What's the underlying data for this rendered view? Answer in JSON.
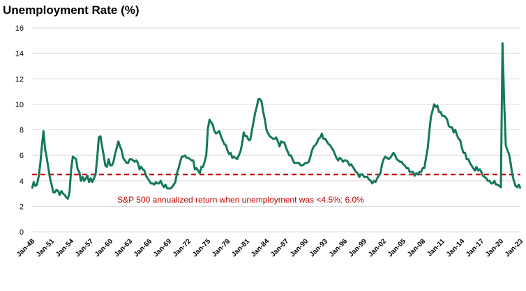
{
  "chart_data": {
    "type": "line",
    "title": "Unemployment Rate (%)",
    "annotation": "S&P 500 annualized return when unemployment was <4.5%: 6.0%",
    "reference_line": {
      "value": 4.5,
      "color": "#c00000"
    },
    "color": "#14785a",
    "grid": true,
    "ylim": [
      0,
      16
    ],
    "yticks": [
      0,
      2,
      4,
      6,
      8,
      10,
      12,
      14,
      16
    ],
    "categories": [
      "Jan-48",
      null,
      null,
      null,
      null,
      null,
      null,
      null,
      null,
      null,
      null,
      null,
      "Jan-51",
      null,
      null,
      null,
      null,
      null,
      null,
      null,
      null,
      null,
      null,
      null,
      "Jan-54",
      null,
      null,
      null,
      null,
      null,
      null,
      null,
      null,
      null,
      null,
      null,
      "Jan-57",
      null,
      null,
      null,
      null,
      null,
      null,
      null,
      null,
      null,
      null,
      null,
      "Jan-60",
      null,
      null,
      null,
      null,
      null,
      null,
      null,
      null,
      null,
      null,
      null,
      "Jan-63",
      null,
      null,
      null,
      null,
      null,
      null,
      null,
      null,
      null,
      null,
      null,
      "Jan-66",
      null,
      null,
      null,
      null,
      null,
      null,
      null,
      null,
      null,
      null,
      null,
      "Jan-69",
      null,
      null,
      null,
      null,
      null,
      null,
      null,
      null,
      null,
      null,
      null,
      "Jan-72",
      null,
      null,
      null,
      null,
      null,
      null,
      null,
      null,
      null,
      null,
      null,
      "Jan-75",
      null,
      null,
      null,
      null,
      null,
      null,
      null,
      null,
      null,
      null,
      null,
      "Jan-78",
      null,
      null,
      null,
      null,
      null,
      null,
      null,
      null,
      null,
      null,
      null,
      "Jan-81",
      null,
      null,
      null,
      null,
      null,
      null,
      null,
      null,
      null,
      null,
      null,
      "Jan-84",
      null,
      null,
      null,
      null,
      null,
      null,
      null,
      null,
      null,
      null,
      null,
      "Jan-87",
      null,
      null,
      null,
      null,
      null,
      null,
      null,
      null,
      null,
      null,
      null,
      "Jan-90",
      null,
      null,
      null,
      null,
      null,
      null,
      null,
      null,
      null,
      null,
      null,
      "Jan-93",
      null,
      null,
      null,
      null,
      null,
      null,
      null,
      null,
      null,
      null,
      null,
      "Jan-96",
      null,
      null,
      null,
      null,
      null,
      null,
      null,
      null,
      null,
      null,
      null,
      "Jan-99",
      null,
      null,
      null,
      null,
      null,
      null,
      null,
      null,
      null,
      null,
      null,
      "Jan-02",
      null,
      null,
      null,
      null,
      null,
      null,
      null,
      null,
      null,
      null,
      null,
      "Jan-05",
      null,
      null,
      null,
      null,
      null,
      null,
      null,
      null,
      null,
      null,
      null,
      "Jan-08",
      null,
      null,
      null,
      null,
      null,
      null,
      null,
      null,
      null,
      null,
      null,
      "Jan-11",
      null,
      null,
      null,
      null,
      null,
      null,
      null,
      null,
      null,
      null,
      null,
      "Jan-14",
      null,
      null,
      null,
      null,
      null,
      null,
      null,
      null,
      null,
      null,
      null,
      "Jan-17",
      null,
      null,
      null,
      null,
      null,
      null,
      null,
      null,
      null,
      null,
      null,
      "Jan-20",
      null,
      null,
      null,
      null,
      null,
      null,
      null,
      null,
      null,
      null,
      null,
      "Jan-23"
    ],
    "values": [
      3.4,
      3.9,
      3.6,
      3.7,
      4.3,
      5.3,
      6.7,
      7.9,
      6.5,
      5.8,
      5.0,
      4.2,
      3.7,
      3.1,
      3.1,
      3.3,
      3.2,
      2.9,
      3.2,
      3.0,
      2.9,
      2.7,
      2.6,
      3.1,
      4.9,
      5.9,
      5.8,
      5.7,
      4.9,
      4.7,
      4.0,
      4.3,
      4.0,
      4.2,
      4.4,
      3.9,
      4.2,
      3.9,
      4.2,
      4.5,
      5.8,
      7.4,
      7.5,
      6.7,
      6.0,
      5.2,
      5.1,
      5.7,
      5.2,
      5.2,
      5.5,
      6.1,
      6.6,
      7.1,
      6.7,
      6.4,
      5.8,
      5.6,
      5.4,
      5.4,
      5.7,
      5.7,
      5.6,
      5.5,
      5.6,
      5.4,
      4.9,
      5.1,
      4.9,
      4.8,
      4.4,
      4.2,
      4.0,
      3.8,
      3.8,
      3.7,
      3.9,
      3.8,
      3.8,
      4.0,
      3.7,
      3.5,
      3.7,
      3.4,
      3.4,
      3.4,
      3.5,
      3.7,
      3.9,
      4.6,
      5.0,
      5.5,
      5.9,
      5.9,
      6.0,
      5.8,
      5.8,
      5.7,
      5.6,
      5.6,
      4.9,
      5.0,
      4.8,
      4.6,
      5.1,
      5.1,
      5.5,
      6.0,
      8.1,
      8.8,
      8.6,
      8.4,
      7.9,
      7.7,
      7.8,
      7.9,
      7.5,
      7.2,
      6.9,
      6.8,
      6.4,
      6.1,
      6.2,
      5.8,
      5.9,
      5.8,
      5.7,
      6.0,
      6.3,
      6.9,
      7.8,
      7.5,
      7.5,
      7.2,
      7.2,
      7.9,
      8.6,
      9.3,
      9.8,
      10.4,
      10.4,
      10.2,
      9.4,
      8.8,
      8.0,
      7.7,
      7.5,
      7.4,
      7.3,
      7.3,
      7.4,
      7.1,
      6.7,
      7.1,
      7.0,
      7.0,
      6.6,
      6.3,
      6.0,
      6.0,
      5.7,
      5.4,
      5.4,
      5.4,
      5.4,
      5.2,
      5.2,
      5.3,
      5.4,
      5.4,
      5.5,
      5.9,
      6.4,
      6.7,
      6.8,
      7.0,
      7.3,
      7.4,
      7.7,
      7.3,
      7.3,
      7.1,
      6.9,
      6.8,
      6.6,
      6.4,
      6.1,
      5.8,
      5.6,
      5.8,
      5.7,
      5.5,
      5.6,
      5.6,
      5.5,
      5.2,
      5.3,
      5.1,
      4.9,
      4.7,
      4.6,
      4.3,
      4.5,
      4.5,
      4.3,
      4.3,
      4.3,
      4.1,
      4.0,
      3.8,
      4.0,
      3.9,
      4.2,
      4.4,
      4.6,
      5.3,
      5.7,
      5.9,
      5.8,
      5.7,
      5.8,
      6.0,
      6.2,
      6.0,
      5.7,
      5.6,
      5.5,
      5.5,
      5.3,
      5.2,
      5.0,
      5.0,
      4.7,
      4.7,
      4.7,
      4.4,
      4.6,
      4.5,
      4.7,
      4.7,
      5.0,
      5.0,
      5.8,
      6.5,
      7.8,
      9.0,
      9.5,
      10.0,
      9.8,
      9.9,
      9.4,
      9.4,
      9.1,
      9.1,
      9.0,
      8.8,
      8.3,
      8.2,
      8.2,
      7.8,
      8.0,
      7.6,
      7.3,
      7.2,
      6.6,
      6.2,
      6.2,
      5.7,
      5.7,
      5.4,
      5.2,
      5.0,
      4.8,
      5.1,
      4.8,
      4.9,
      4.7,
      4.4,
      4.3,
      4.2,
      4.0,
      4.0,
      3.8,
      3.8,
      4.0,
      3.7,
      3.7,
      3.6,
      3.5,
      14.8,
      10.2,
      6.8,
      6.4,
      6.1,
      5.4,
      4.5,
      4.0,
      3.6,
      3.5,
      3.7,
      3.4
    ]
  }
}
